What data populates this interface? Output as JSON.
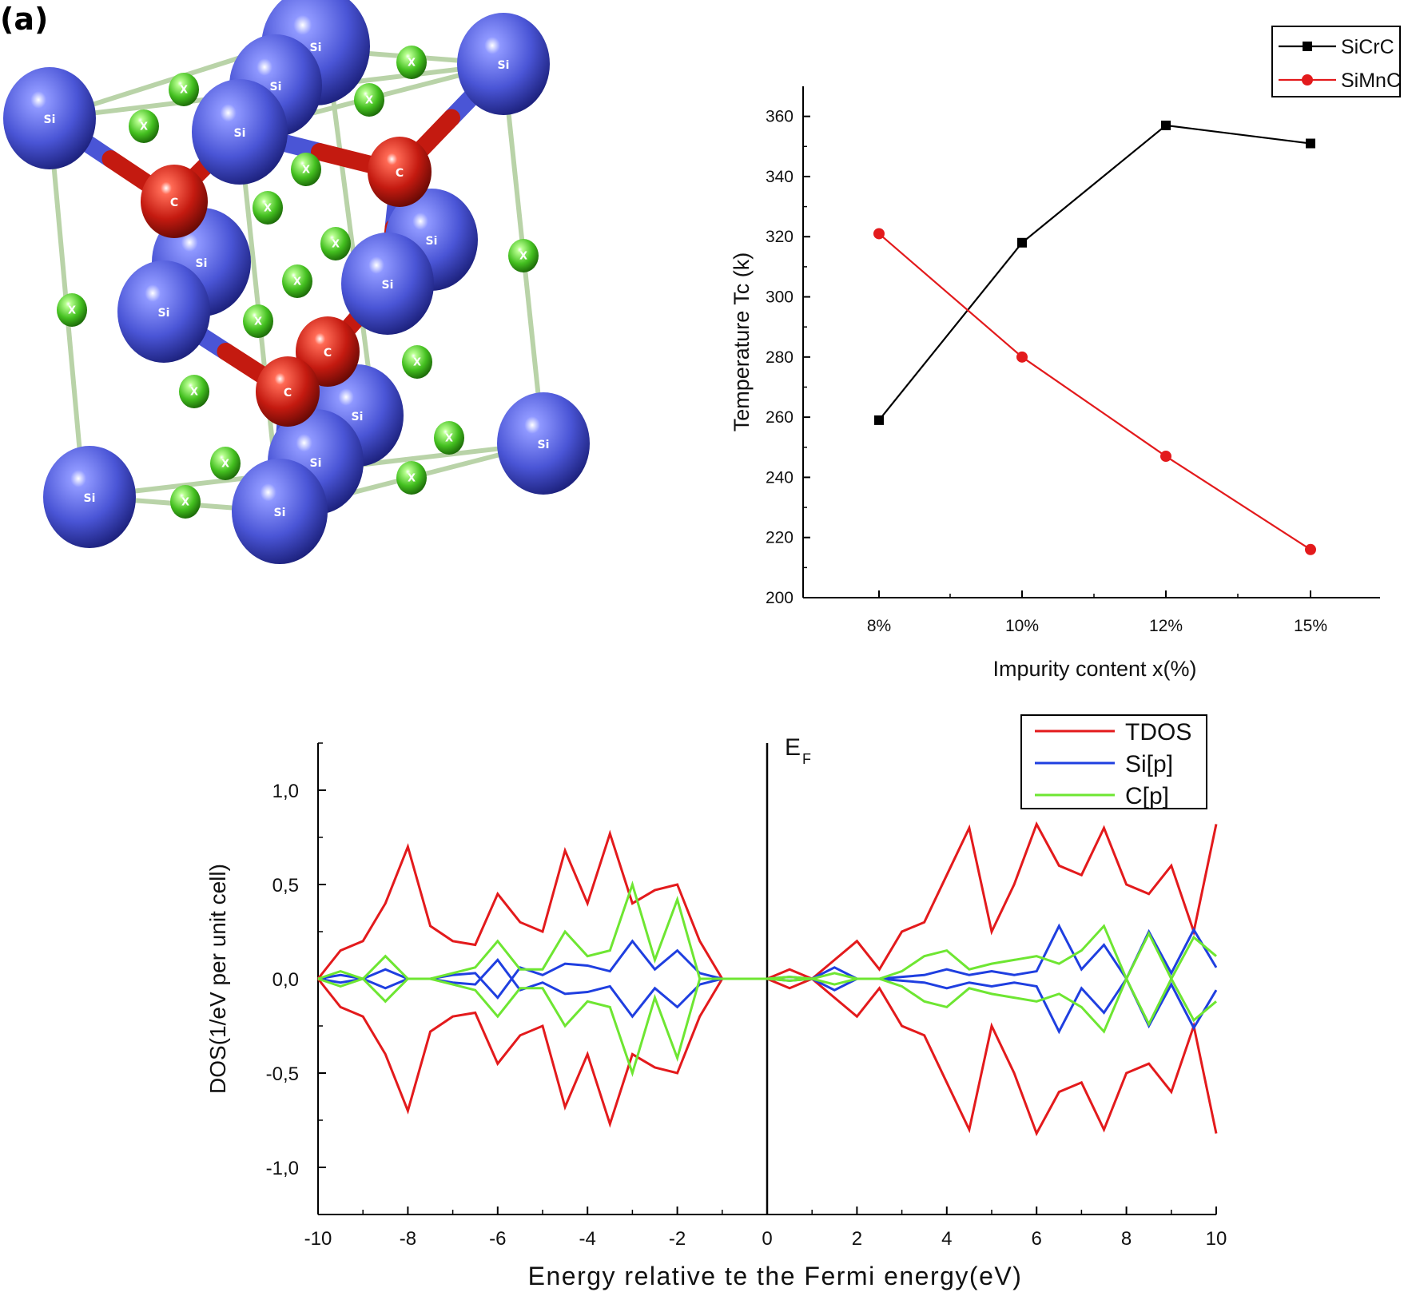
{
  "panel_label": "(a)",
  "structure": {
    "atoms": {
      "si": "Si",
      "c": "C",
      "x": "X"
    },
    "colors": {
      "si": "#4a55d6",
      "c": "#c41a10",
      "x": "#44c020",
      "bond": "#b9d3a8"
    }
  },
  "chart_data": [
    {
      "type": "line",
      "categories": [
        "8%",
        "10%",
        "12%",
        "15%"
      ],
      "series": [
        {
          "name": "SiCrC",
          "values": [
            259,
            318,
            357,
            351
          ],
          "color": "#000000",
          "marker": "square"
        },
        {
          "name": "SiMnC",
          "values": [
            321,
            280,
            247,
            216
          ],
          "color": "#e31a1c",
          "marker": "circle"
        }
      ],
      "xlabel": "Impurity content x(%)",
      "ylabel": "Temperature Tc (k)",
      "ylim": [
        200,
        370
      ],
      "yticks": [
        "200",
        "220",
        "240",
        "260",
        "280",
        "300",
        "320",
        "340",
        "360"
      ],
      "legend": "top-right"
    },
    {
      "type": "line",
      "x": [
        -10,
        -9.5,
        -9,
        -8.5,
        -8,
        -7.5,
        -7,
        -6.5,
        -6,
        -5.5,
        -5,
        -4.5,
        -4,
        -3.5,
        -3,
        -2.5,
        -2,
        -1.5,
        -1,
        -0.5,
        0,
        0.5,
        1,
        1.5,
        2,
        2.5,
        3,
        3.5,
        4,
        4.5,
        5,
        5.5,
        6,
        6.5,
        7,
        7.5,
        8,
        8.5,
        9,
        9.5,
        10
      ],
      "series": [
        {
          "name": "TDOS",
          "values": [
            0.0,
            0.15,
            0.2,
            0.4,
            0.7,
            0.28,
            0.2,
            0.18,
            0.45,
            0.3,
            0.25,
            0.68,
            0.4,
            0.77,
            0.4,
            0.47,
            0.5,
            0.2,
            0.0,
            0.0,
            0.0,
            0.05,
            0.0,
            0.1,
            0.2,
            0.05,
            0.25,
            0.3,
            0.55,
            0.8,
            0.25,
            0.5,
            0.82,
            0.6,
            0.55,
            0.8,
            0.5,
            0.45,
            0.6,
            0.25,
            0.82
          ],
          "color": "#e31a1c"
        },
        {
          "name": "Si[p]",
          "values": [
            0.0,
            0.02,
            0.0,
            0.05,
            0.0,
            0.0,
            0.02,
            0.03,
            -0.1,
            0.06,
            0.02,
            0.08,
            0.07,
            0.04,
            0.2,
            0.05,
            0.15,
            0.03,
            0.0,
            0.0,
            0.0,
            0.01,
            0.0,
            0.06,
            0.0,
            0.0,
            0.01,
            0.02,
            0.05,
            0.02,
            0.04,
            0.02,
            0.04,
            0.28,
            0.05,
            0.18,
            0.0,
            0.25,
            0.03,
            0.26,
            0.06
          ],
          "color": "#1f3fe0"
        },
        {
          "name": "C[p]",
          "values": [
            0.0,
            0.04,
            0.0,
            0.12,
            0.0,
            0.0,
            0.03,
            0.06,
            0.2,
            0.05,
            0.05,
            0.25,
            0.12,
            0.15,
            0.5,
            0.1,
            0.42,
            0.0,
            0.0,
            0.0,
            0.0,
            0.01,
            0.0,
            0.03,
            0.0,
            0.0,
            0.04,
            0.12,
            0.15,
            0.05,
            0.08,
            0.1,
            0.12,
            0.08,
            0.15,
            0.28,
            0.0,
            0.24,
            0.0,
            0.22,
            0.12
          ],
          "color": "#6ee632"
        }
      ],
      "mirrored": true,
      "xlabel": "Energy relative te the Fermi energy(eV)",
      "ylabel": "DOS(1/eV per unit cell)",
      "xlim": [
        -10,
        10
      ],
      "ylim": [
        -1.25,
        1.25
      ],
      "xticks": [
        "-10",
        "-8",
        "-6",
        "-4",
        "-2",
        "0",
        "2",
        "4",
        "6",
        "8",
        "10"
      ],
      "yticks": [
        "-1,0",
        "-0,5",
        "0,0",
        "0,5",
        "1,0"
      ],
      "annotation": "E",
      "annotation_subscript": "F",
      "legend": "top-right"
    }
  ]
}
